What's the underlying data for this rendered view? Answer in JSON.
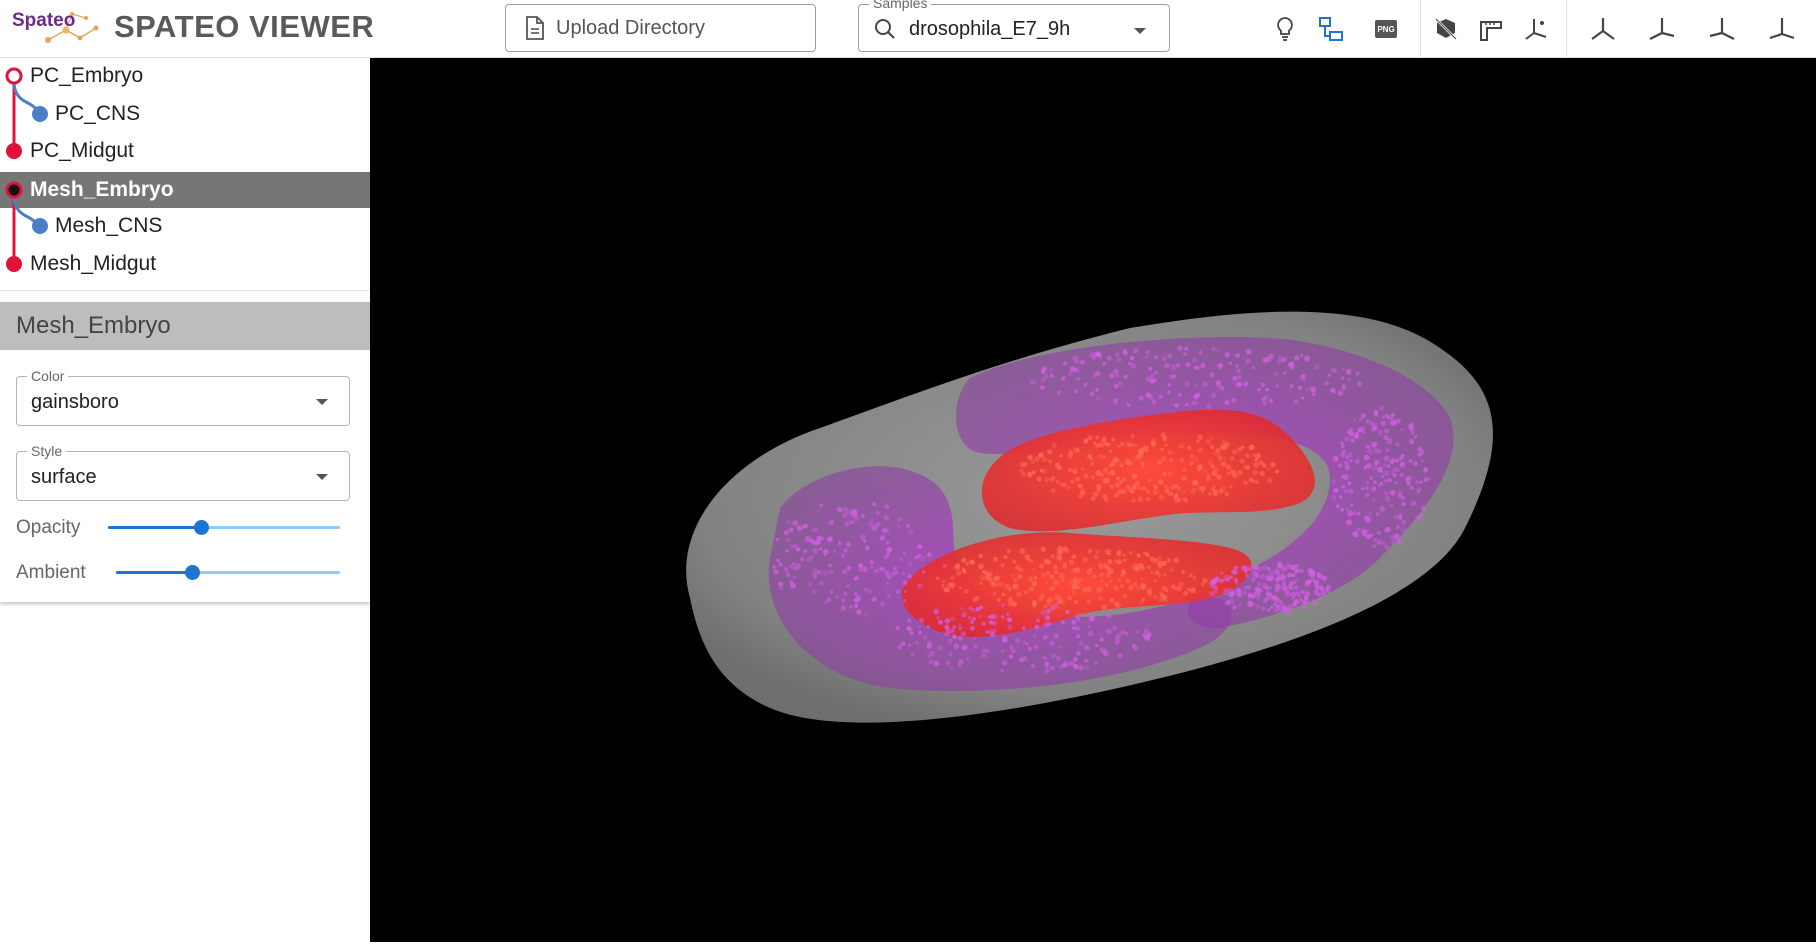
{
  "header": {
    "logo_text": "Spateo",
    "app_title": "SPATEO VIEWER",
    "upload_label": "Upload Directory",
    "samples": {
      "legend": "Samples",
      "value": "drosophila_E7_9h"
    },
    "toolbar_icons": [
      "lightbulb-icon",
      "hierarchy-icon",
      "png-export-icon",
      "hide-scene-icon",
      "ruler-icon",
      "axes-icon",
      "view-axis-1-icon",
      "view-axis-2-icon",
      "view-axis-3-icon",
      "view-axis-4-icon"
    ],
    "png_badge": "PNG"
  },
  "tree": {
    "items": [
      {
        "label": "PC_Embryo",
        "level": 0,
        "node": "ring-red"
      },
      {
        "label": "PC_CNS",
        "level": 1,
        "node": "dot-blue"
      },
      {
        "label": "PC_Midgut",
        "level": 0,
        "node": "dot-red"
      },
      {
        "label": "Mesh_Embryo",
        "level": 0,
        "node": "ring-dark",
        "selected": true
      },
      {
        "label": "Mesh_CNS",
        "level": 1,
        "node": "dot-blue"
      },
      {
        "label": "Mesh_Midgut",
        "level": 0,
        "node": "dot-red"
      }
    ],
    "colors": {
      "red": "#e0113a",
      "blue": "#4a80c6",
      "selected_bg": "#767676"
    }
  },
  "panel": {
    "title": "Mesh_Embryo",
    "color": {
      "legend": "Color",
      "value": "gainsboro"
    },
    "style": {
      "legend": "Style",
      "value": "surface"
    },
    "opacity": {
      "label": "Opacity",
      "value": 0.4
    },
    "ambient": {
      "label": "Ambient",
      "value": 0.34
    },
    "accent": "#1976d2"
  },
  "viewer": {
    "background": "#000000",
    "embryo_color": "#8a8a8a",
    "cns_color": "#b34ac8",
    "midgut_color": "#ff3b30"
  }
}
